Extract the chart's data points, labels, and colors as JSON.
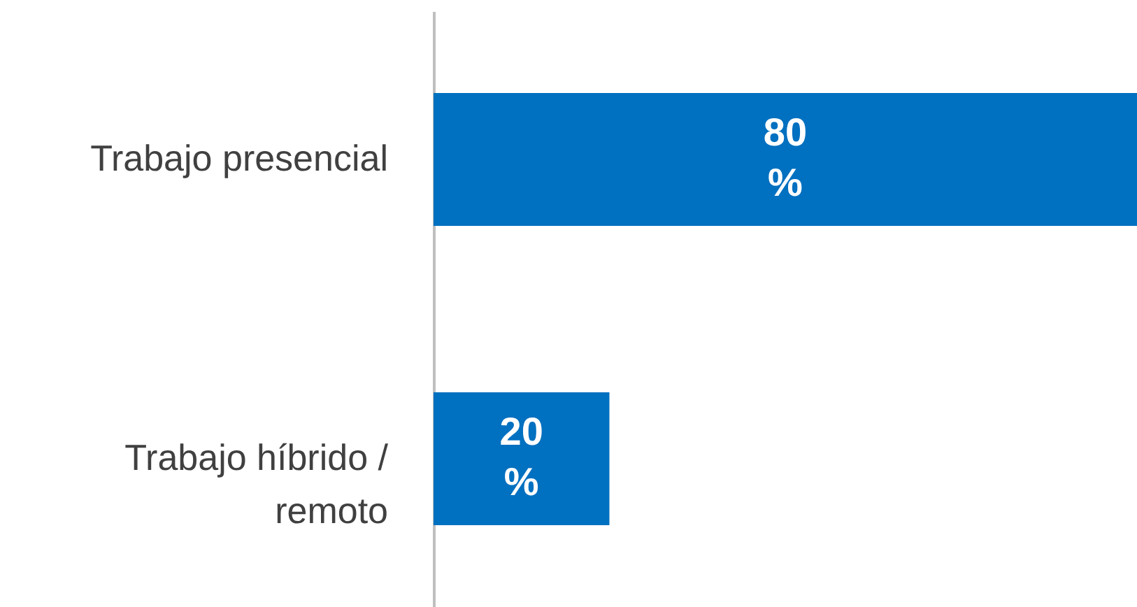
{
  "chart_data": {
    "type": "bar",
    "orientation": "horizontal",
    "categories": [
      "Trabajo presencial",
      "Trabajo híbrido / remoto"
    ],
    "values": [
      80,
      20
    ],
    "color": "#0070c0",
    "value_labels": [
      "80 %",
      "20 %"
    ],
    "xlim": [
      0,
      80
    ],
    "tick_labels": "y"
  }
}
